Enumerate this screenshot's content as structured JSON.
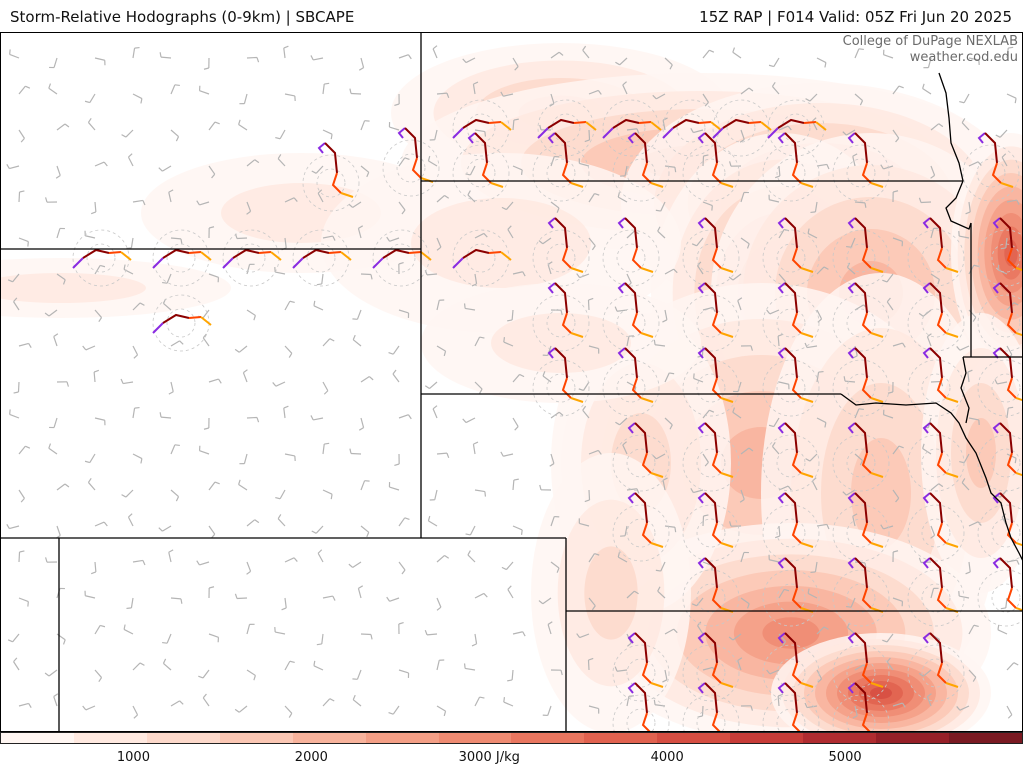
{
  "header": {
    "title": "Storm-Relative Hodographs (0-9km) | SBCAPE",
    "run_info": "15Z RAP | F014 Valid: 05Z Fri Jun 20 2025"
  },
  "credit": {
    "line1": "College of DuPage NEXLAB",
    "line2": "weather.cod.edu"
  },
  "colorbar": {
    "colors": [
      "#fff6f2",
      "#ffe9e0",
      "#fdd9cb",
      "#fbc7b4",
      "#f8b39c",
      "#f49f86",
      "#ef8b72",
      "#e9765f",
      "#e1624f",
      "#d64e42",
      "#c73c38",
      "#b02c30",
      "#962028",
      "#7a1a22"
    ],
    "ticks": [
      {
        "value": 1000,
        "label": "1000"
      },
      {
        "value": 2000,
        "label": "2000"
      },
      {
        "value": 3000,
        "label": "3000 J/kg"
      },
      {
        "value": 4000,
        "label": "4000"
      },
      {
        "value": 5000,
        "label": "5000"
      }
    ],
    "range": [
      250,
      6000
    ]
  },
  "colors": {
    "hodo_low": "#8a2be2",
    "hodo_mid": "#8b0000",
    "hodo_upper": "#ff4500",
    "hodo_top": "#ffa500",
    "barb": "#b5b5b5",
    "boundary": "#000000"
  }
}
